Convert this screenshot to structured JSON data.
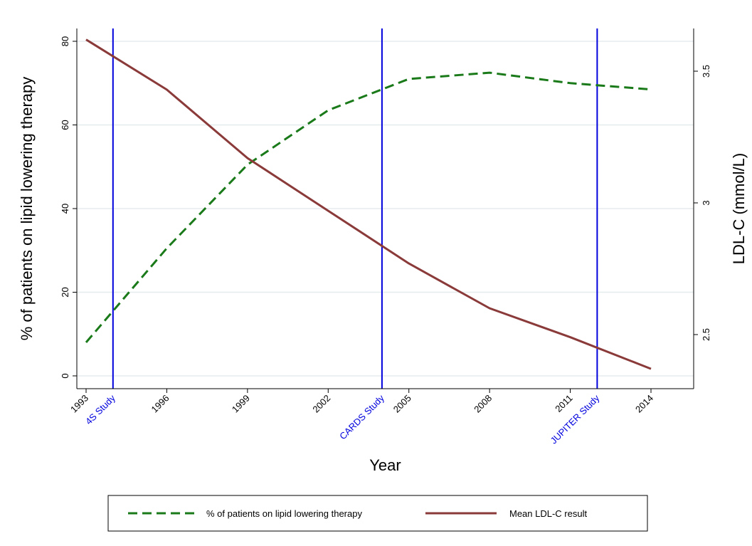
{
  "chart_data": {
    "type": "line",
    "xlabel": "Year",
    "ylabel_left": "% of patients on lipid lowering therapy",
    "ylabel_right": "LDL-C (mmol/L)",
    "x_ticks": [
      "1993",
      "1996",
      "1999",
      "2002",
      "2005",
      "2008",
      "2011",
      "2014"
    ],
    "xlim": [
      1993,
      2014
    ],
    "ylim_left": [
      0,
      80
    ],
    "y_ticks_left": [
      "0",
      "20",
      "40",
      "60",
      "80"
    ],
    "ylim_right": [
      2.37,
      3.62
    ],
    "y_ticks_right": [
      "2.5",
      "3",
      "3.5"
    ],
    "grid": "horizontal",
    "legend_position": "bottom",
    "series": [
      {
        "name": "% of patients on lipid lowering therapy",
        "axis": "left",
        "style": "dashed",
        "color": "#1a7a1a",
        "x": [
          1993,
          1996,
          1999,
          2002,
          2005,
          2008,
          2011,
          2014
        ],
        "values": [
          8,
          30.5,
          50.5,
          63.5,
          71,
          72.5,
          70,
          68.5
        ]
      },
      {
        "name": "Mean LDL-C result",
        "axis": "right",
        "style": "solid",
        "color": "#8b3a3a",
        "x": [
          1993,
          1996,
          1999,
          2002,
          2005,
          2008,
          2011,
          2014
        ],
        "values": [
          3.62,
          3.43,
          3.17,
          2.97,
          2.77,
          2.6,
          2.49,
          2.37
        ]
      }
    ],
    "reference_lines": [
      {
        "x": 1994,
        "label": "4S Study"
      },
      {
        "x": 2004,
        "label": "CARDS Study"
      },
      {
        "x": 2012,
        "label": "JUPITER Study"
      }
    ],
    "colors": {
      "reference": "#0000dd",
      "grid": "#e5ecee",
      "axis": "#000000"
    }
  }
}
